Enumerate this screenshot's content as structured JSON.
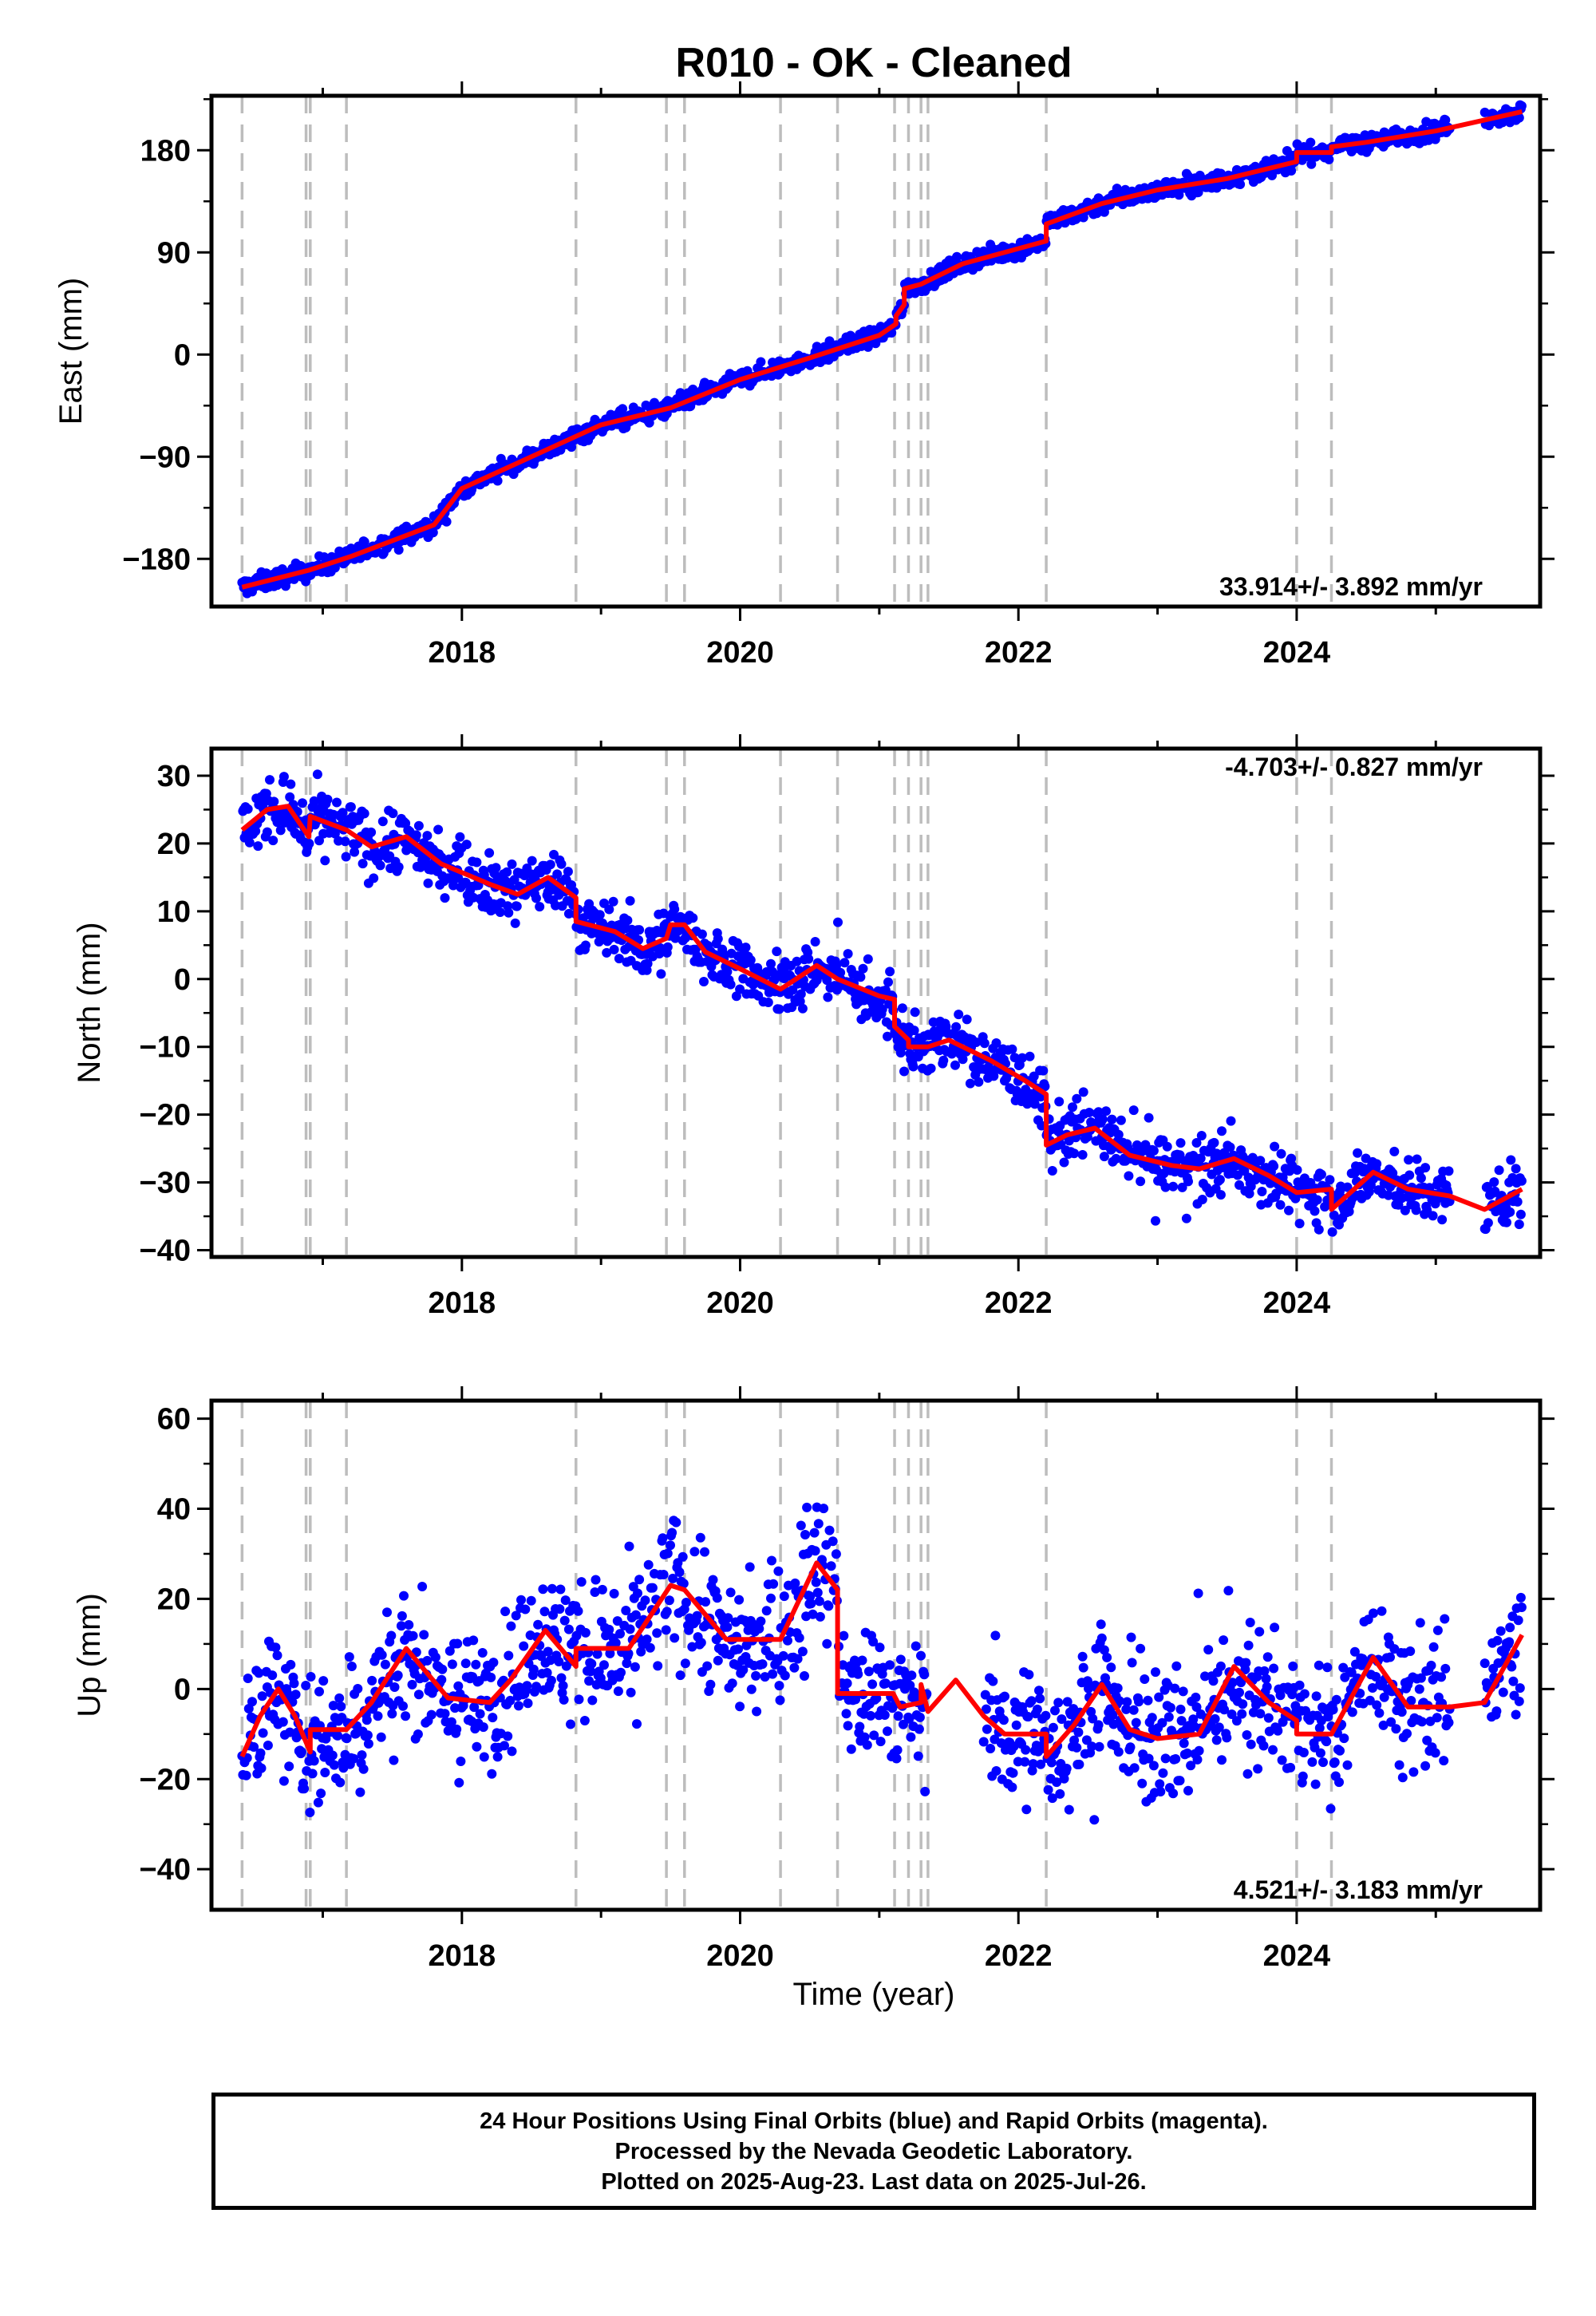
{
  "chart_data": [
    {
      "type": "scatter",
      "title": "R010  - OK - Cleaned",
      "xlabel": "",
      "ylabel": "East (mm)",
      "xlim": [
        2016.2,
        2025.75
      ],
      "ylim": [
        -222,
        228
      ],
      "xticks": [
        2018,
        2020,
        2022,
        2024
      ],
      "yticks": [
        -180,
        -90,
        0,
        90,
        180
      ],
      "rate_label": "33.914+/- 3.892 mm/yr",
      "rate_label_position": "bottom-right",
      "grid": false,
      "event_lines_x": [
        2016.42,
        2016.88,
        2016.91,
        2017.17,
        2018.82,
        2019.47,
        2019.6,
        2020.29,
        2020.7,
        2021.11,
        2021.21,
        2021.3,
        2021.35,
        2022.2,
        2024.0,
        2024.25
      ],
      "series": [
        {
          "color": "#0000ff",
          "kind": "points",
          "daily_position_model": {
            "rate_mm_per_yr": 34.0,
            "offsets": [
              [
                2016.42,
                -205
              ],
              [
                2018.82,
                -68
              ],
              [
                2019.55,
                -42
              ],
              [
                2021.16,
                52
              ],
              [
                2021.2,
                61
              ],
              [
                2022.2,
                121
              ],
              [
                2024.1,
                171
              ],
              [
                2025.62,
                212
              ]
            ],
            "scatter_mm": 4,
            "gaps": [
              [
                2025.1,
                2025.35
              ]
            ]
          }
        },
        {
          "color": "#ff0000",
          "kind": "model-line",
          "points": [
            [
              2016.42,
              -205
            ],
            [
              2016.9,
              -190
            ],
            [
              2017.2,
              -178
            ],
            [
              2017.8,
              -150
            ],
            [
              2018.0,
              -118
            ],
            [
              2018.82,
              -72
            ],
            [
              2019.0,
              -62
            ],
            [
              2019.5,
              -47
            ],
            [
              2020.0,
              -22
            ],
            [
              2020.5,
              -3
            ],
            [
              2021.0,
              17
            ],
            [
              2021.12,
              27
            ],
            [
              2021.12,
              34
            ],
            [
              2021.18,
              44
            ],
            [
              2021.18,
              58
            ],
            [
              2021.3,
              62
            ],
            [
              2021.6,
              80
            ],
            [
              2022.2,
              100
            ],
            [
              2022.2,
              115
            ],
            [
              2022.6,
              133
            ],
            [
              2023.0,
              145
            ],
            [
              2023.5,
              155
            ],
            [
              2024.0,
              170
            ],
            [
              2024.0,
              178
            ],
            [
              2024.25,
              178
            ],
            [
              2024.25,
              183
            ],
            [
              2024.5,
              187
            ],
            [
              2025.0,
              197
            ],
            [
              2025.62,
              214
            ]
          ]
        }
      ]
    },
    {
      "type": "scatter",
      "title": "",
      "xlabel": "",
      "ylabel": "North (mm)",
      "xlim": [
        2016.2,
        2025.75
      ],
      "ylim": [
        -41,
        34
      ],
      "xticks": [
        2018,
        2020,
        2022,
        2024
      ],
      "yticks": [
        -40,
        -30,
        -20,
        -10,
        0,
        10,
        20,
        30
      ],
      "rate_label": "-4.703+/- 0.827 mm/yr",
      "rate_label_position": "top-right",
      "grid": false,
      "event_lines_x": [
        2016.42,
        2016.88,
        2016.91,
        2017.17,
        2018.82,
        2019.47,
        2019.6,
        2020.29,
        2020.7,
        2021.11,
        2021.21,
        2021.3,
        2021.35,
        2022.2,
        2024.0,
        2024.25
      ],
      "series": [
        {
          "color": "#0000ff",
          "kind": "points",
          "daily_position_model": {
            "rate_mm_per_yr": -4.7,
            "seasonal_amplitude_mm": 2.5,
            "scatter_mm": 2.2,
            "gaps": [
              [
                2025.1,
                2025.35
              ]
            ]
          }
        },
        {
          "color": "#ff0000",
          "kind": "model-line",
          "points": [
            [
              2016.42,
              22
            ],
            [
              2016.6,
              25
            ],
            [
              2016.75,
              25.5
            ],
            [
              2016.9,
              21
            ],
            [
              2016.91,
              24
            ],
            [
              2017.17,
              22
            ],
            [
              2017.35,
              19.5
            ],
            [
              2017.6,
              21
            ],
            [
              2017.85,
              17
            ],
            [
              2018.2,
              14
            ],
            [
              2018.4,
              12.5
            ],
            [
              2018.62,
              15
            ],
            [
              2018.82,
              12
            ],
            [
              2018.82,
              8.5
            ],
            [
              2019.1,
              7
            ],
            [
              2019.3,
              4.5
            ],
            [
              2019.47,
              6
            ],
            [
              2019.5,
              8
            ],
            [
              2019.6,
              8
            ],
            [
              2019.75,
              4
            ],
            [
              2020.0,
              1.5
            ],
            [
              2020.29,
              -1.5
            ],
            [
              2020.55,
              2
            ],
            [
              2020.7,
              0
            ],
            [
              2021.0,
              -2.5
            ],
            [
              2021.11,
              -3
            ],
            [
              2021.11,
              -7
            ],
            [
              2021.21,
              -9
            ],
            [
              2021.21,
              -10
            ],
            [
              2021.35,
              -10
            ],
            [
              2021.5,
              -9
            ],
            [
              2021.8,
              -12
            ],
            [
              2022.05,
              -15
            ],
            [
              2022.2,
              -17
            ],
            [
              2022.2,
              -24.5
            ],
            [
              2022.35,
              -23
            ],
            [
              2022.55,
              -22
            ],
            [
              2022.8,
              -26
            ],
            [
              2023.1,
              -27.5
            ],
            [
              2023.3,
              -28
            ],
            [
              2023.55,
              -26.5
            ],
            [
              2023.8,
              -29
            ],
            [
              2024.0,
              -31.5
            ],
            [
              2024.25,
              -31
            ],
            [
              2024.25,
              -34
            ],
            [
              2024.55,
              -28.5
            ],
            [
              2024.8,
              -31
            ],
            [
              2025.1,
              -32
            ],
            [
              2025.35,
              -34
            ],
            [
              2025.62,
              -31
            ]
          ]
        }
      ]
    },
    {
      "type": "scatter",
      "title": "",
      "xlabel": "Time (year)",
      "ylabel": "Up (mm)",
      "xlim": [
        2016.2,
        2025.75
      ],
      "ylim": [
        -49,
        64
      ],
      "xticks": [
        2018,
        2020,
        2022,
        2024
      ],
      "yticks": [
        -40,
        -20,
        0,
        20,
        40,
        60
      ],
      "rate_label": "4.521+/- 3.183 mm/yr",
      "rate_label_position": "bottom-right",
      "grid": false,
      "event_lines_x": [
        2016.42,
        2016.88,
        2016.91,
        2017.17,
        2018.82,
        2019.47,
        2019.6,
        2020.29,
        2020.7,
        2021.11,
        2021.21,
        2021.3,
        2021.35,
        2022.2,
        2024.0,
        2024.25
      ],
      "series": [
        {
          "color": "#0000ff",
          "kind": "points",
          "daily_position_model": {
            "seasonal_amplitude_mm": 9,
            "scatter_mm": 7.5,
            "gaps": [
              [
                2021.35,
                2021.75
              ],
              [
                2025.1,
                2025.35
              ]
            ]
          }
        },
        {
          "color": "#ff0000",
          "kind": "model-line",
          "points": [
            [
              2016.42,
              -15
            ],
            [
              2016.55,
              -6
            ],
            [
              2016.68,
              0
            ],
            [
              2016.8,
              -6
            ],
            [
              2016.91,
              -14
            ],
            [
              2016.91,
              -9
            ],
            [
              2017.17,
              -9
            ],
            [
              2017.35,
              -3
            ],
            [
              2017.6,
              9
            ],
            [
              2017.9,
              -2
            ],
            [
              2018.2,
              -3
            ],
            [
              2018.35,
              2
            ],
            [
              2018.6,
              13
            ],
            [
              2018.82,
              5
            ],
            [
              2018.82,
              9
            ],
            [
              2019.2,
              9
            ],
            [
              2019.5,
              23
            ],
            [
              2019.6,
              22
            ],
            [
              2019.9,
              11
            ],
            [
              2020.29,
              11
            ],
            [
              2020.55,
              28
            ],
            [
              2020.7,
              22
            ],
            [
              2020.7,
              -1
            ],
            [
              2021.0,
              -1
            ],
            [
              2021.1,
              -1
            ],
            [
              2021.15,
              -4
            ],
            [
              2021.3,
              -3
            ],
            [
              2021.3,
              1
            ],
            [
              2021.35,
              -5
            ],
            [
              2021.55,
              2
            ],
            [
              2021.75,
              -6
            ],
            [
              2021.9,
              -10
            ],
            [
              2022.2,
              -10
            ],
            [
              2022.2,
              -15
            ],
            [
              2022.4,
              -8
            ],
            [
              2022.6,
              1
            ],
            [
              2022.8,
              -9
            ],
            [
              2023.0,
              -11
            ],
            [
              2023.3,
              -10
            ],
            [
              2023.55,
              5
            ],
            [
              2023.8,
              -3
            ],
            [
              2024.0,
              -7
            ],
            [
              2024.0,
              -10
            ],
            [
              2024.25,
              -10
            ],
            [
              2024.55,
              7
            ],
            [
              2024.8,
              -4
            ],
            [
              2025.1,
              -4
            ],
            [
              2025.35,
              -3
            ],
            [
              2025.62,
              12
            ]
          ]
        }
      ]
    }
  ],
  "caption": {
    "line1": "24 Hour Positions Using Final Orbits (blue) and Rapid Orbits (magenta).",
    "line2": "Processed by the Nevada Geodetic Laboratory.",
    "line3": "Plotted on 2025-Aug-23. Last data on 2025-Jul-26."
  }
}
